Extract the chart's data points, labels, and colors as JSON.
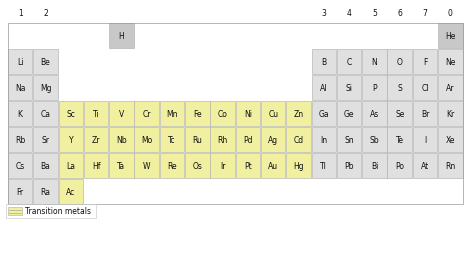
{
  "bg_color": "#ffffff",
  "cell_color_default": "#e0e0e0",
  "cell_color_transition": "#f0f0a0",
  "cell_color_h_he": "#c8c8c8",
  "cell_border": "#aaaaaa",
  "text_color": "#111111",
  "legend_label": "Transition metals",
  "element_fontsize": 5.5,
  "group_fontsize": 5.5,
  "legend_fontsize": 5.5,
  "elements": [
    {
      "symbol": "H",
      "row": 1,
      "col": 5,
      "type": "special"
    },
    {
      "symbol": "He",
      "row": 1,
      "col": 18,
      "type": "special"
    },
    {
      "symbol": "Li",
      "row": 2,
      "col": 1,
      "type": "main"
    },
    {
      "symbol": "Be",
      "row": 2,
      "col": 2,
      "type": "main"
    },
    {
      "symbol": "B",
      "row": 2,
      "col": 13,
      "type": "main"
    },
    {
      "symbol": "C",
      "row": 2,
      "col": 14,
      "type": "main"
    },
    {
      "symbol": "N",
      "row": 2,
      "col": 15,
      "type": "main"
    },
    {
      "symbol": "O",
      "row": 2,
      "col": 16,
      "type": "main"
    },
    {
      "symbol": "F",
      "row": 2,
      "col": 17,
      "type": "main"
    },
    {
      "symbol": "Ne",
      "row": 2,
      "col": 18,
      "type": "main"
    },
    {
      "symbol": "Na",
      "row": 3,
      "col": 1,
      "type": "main"
    },
    {
      "symbol": "Mg",
      "row": 3,
      "col": 2,
      "type": "main"
    },
    {
      "symbol": "Al",
      "row": 3,
      "col": 13,
      "type": "main"
    },
    {
      "symbol": "Si",
      "row": 3,
      "col": 14,
      "type": "main"
    },
    {
      "symbol": "P",
      "row": 3,
      "col": 15,
      "type": "main"
    },
    {
      "symbol": "S",
      "row": 3,
      "col": 16,
      "type": "main"
    },
    {
      "symbol": "Cl",
      "row": 3,
      "col": 17,
      "type": "main"
    },
    {
      "symbol": "Ar",
      "row": 3,
      "col": 18,
      "type": "main"
    },
    {
      "symbol": "K",
      "row": 4,
      "col": 1,
      "type": "main"
    },
    {
      "symbol": "Ca",
      "row": 4,
      "col": 2,
      "type": "main"
    },
    {
      "symbol": "Sc",
      "row": 4,
      "col": 3,
      "type": "transition"
    },
    {
      "symbol": "Ti",
      "row": 4,
      "col": 4,
      "type": "transition"
    },
    {
      "symbol": "V",
      "row": 4,
      "col": 5,
      "type": "transition"
    },
    {
      "symbol": "Cr",
      "row": 4,
      "col": 6,
      "type": "transition"
    },
    {
      "symbol": "Mn",
      "row": 4,
      "col": 7,
      "type": "transition"
    },
    {
      "symbol": "Fe",
      "row": 4,
      "col": 8,
      "type": "transition"
    },
    {
      "symbol": "Co",
      "row": 4,
      "col": 9,
      "type": "transition"
    },
    {
      "symbol": "Ni",
      "row": 4,
      "col": 10,
      "type": "transition"
    },
    {
      "symbol": "Cu",
      "row": 4,
      "col": 11,
      "type": "transition"
    },
    {
      "symbol": "Zn",
      "row": 4,
      "col": 12,
      "type": "transition"
    },
    {
      "symbol": "Ga",
      "row": 4,
      "col": 13,
      "type": "main"
    },
    {
      "symbol": "Ge",
      "row": 4,
      "col": 14,
      "type": "main"
    },
    {
      "symbol": "As",
      "row": 4,
      "col": 15,
      "type": "main"
    },
    {
      "symbol": "Se",
      "row": 4,
      "col": 16,
      "type": "main"
    },
    {
      "symbol": "Br",
      "row": 4,
      "col": 17,
      "type": "main"
    },
    {
      "symbol": "Kr",
      "row": 4,
      "col": 18,
      "type": "main"
    },
    {
      "symbol": "Rb",
      "row": 5,
      "col": 1,
      "type": "main"
    },
    {
      "symbol": "Sr",
      "row": 5,
      "col": 2,
      "type": "main"
    },
    {
      "symbol": "Y",
      "row": 5,
      "col": 3,
      "type": "transition"
    },
    {
      "symbol": "Zr",
      "row": 5,
      "col": 4,
      "type": "transition"
    },
    {
      "symbol": "Nb",
      "row": 5,
      "col": 5,
      "type": "transition"
    },
    {
      "symbol": "Mo",
      "row": 5,
      "col": 6,
      "type": "transition"
    },
    {
      "symbol": "Tc",
      "row": 5,
      "col": 7,
      "type": "transition"
    },
    {
      "symbol": "Ru",
      "row": 5,
      "col": 8,
      "type": "transition"
    },
    {
      "symbol": "Rh",
      "row": 5,
      "col": 9,
      "type": "transition"
    },
    {
      "symbol": "Pd",
      "row": 5,
      "col": 10,
      "type": "transition"
    },
    {
      "symbol": "Ag",
      "row": 5,
      "col": 11,
      "type": "transition"
    },
    {
      "symbol": "Cd",
      "row": 5,
      "col": 12,
      "type": "transition"
    },
    {
      "symbol": "In",
      "row": 5,
      "col": 13,
      "type": "main"
    },
    {
      "symbol": "Sn",
      "row": 5,
      "col": 14,
      "type": "main"
    },
    {
      "symbol": "Sb",
      "row": 5,
      "col": 15,
      "type": "main"
    },
    {
      "symbol": "Te",
      "row": 5,
      "col": 16,
      "type": "main"
    },
    {
      "symbol": "I",
      "row": 5,
      "col": 17,
      "type": "main"
    },
    {
      "symbol": "Xe",
      "row": 5,
      "col": 18,
      "type": "main"
    },
    {
      "symbol": "Cs",
      "row": 6,
      "col": 1,
      "type": "main"
    },
    {
      "symbol": "Ba",
      "row": 6,
      "col": 2,
      "type": "main"
    },
    {
      "symbol": "La",
      "row": 6,
      "col": 3,
      "type": "transition"
    },
    {
      "symbol": "Hf",
      "row": 6,
      "col": 4,
      "type": "transition"
    },
    {
      "symbol": "Ta",
      "row": 6,
      "col": 5,
      "type": "transition"
    },
    {
      "symbol": "W",
      "row": 6,
      "col": 6,
      "type": "transition"
    },
    {
      "symbol": "Re",
      "row": 6,
      "col": 7,
      "type": "transition"
    },
    {
      "symbol": "Os",
      "row": 6,
      "col": 8,
      "type": "transition"
    },
    {
      "symbol": "Ir",
      "row": 6,
      "col": 9,
      "type": "transition"
    },
    {
      "symbol": "Pt",
      "row": 6,
      "col": 10,
      "type": "transition"
    },
    {
      "symbol": "Au",
      "row": 6,
      "col": 11,
      "type": "transition"
    },
    {
      "symbol": "Hg",
      "row": 6,
      "col": 12,
      "type": "transition"
    },
    {
      "symbol": "Tl",
      "row": 6,
      "col": 13,
      "type": "main"
    },
    {
      "symbol": "Pb",
      "row": 6,
      "col": 14,
      "type": "main"
    },
    {
      "symbol": "Bi",
      "row": 6,
      "col": 15,
      "type": "main"
    },
    {
      "symbol": "Po",
      "row": 6,
      "col": 16,
      "type": "main"
    },
    {
      "symbol": "At",
      "row": 6,
      "col": 17,
      "type": "main"
    },
    {
      "symbol": "Rn",
      "row": 6,
      "col": 18,
      "type": "main"
    },
    {
      "symbol": "Fr",
      "row": 7,
      "col": 1,
      "type": "main"
    },
    {
      "symbol": "Ra",
      "row": 7,
      "col": 2,
      "type": "main"
    },
    {
      "symbol": "Ac",
      "row": 7,
      "col": 3,
      "type": "transition"
    }
  ],
  "group_display": {
    "1": "1",
    "2": "2",
    "13": "3",
    "14": "4",
    "15": "5",
    "16": "6",
    "17": "7",
    "18": "0"
  }
}
